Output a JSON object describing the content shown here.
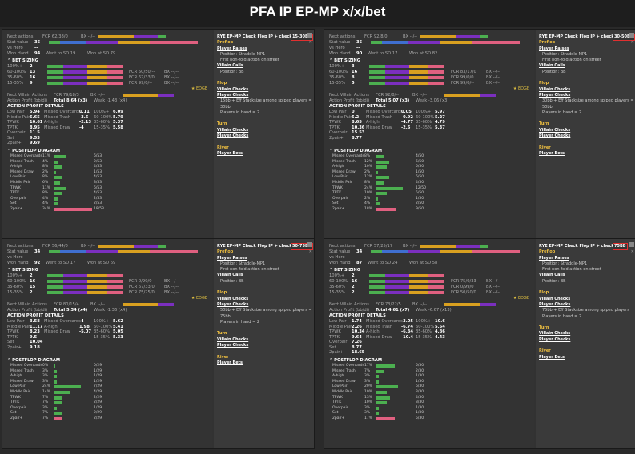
{
  "title": "PFA IP EP-MP x/x/bet",
  "panels": [
    {
      "header": "RYE EP-MP Check Flop IP + check + bet",
      "tag": "15-30BB",
      "next_actions": "Next actions",
      "fcr": "FCR 62/38/0",
      "bx": "BX --/--",
      "stat_value": "Stat value",
      "stat_num": "35",
      "vs_hero": "vs Hero",
      "vs_num": "--",
      "won_hand": "Won Hand",
      "won_num": "94",
      "went_sd": "Went to SD 19",
      "won_sd": "Won at SD 79",
      "bet_sizing": "BET SIZING",
      "sizing": [
        {
          "range": "100%+",
          "n": "2",
          "fcr": "",
          "bx": ""
        },
        {
          "range": "60-100%",
          "n": "13",
          "fcr": "FCR 50/50/--",
          "bx": "BX --/--"
        },
        {
          "range": "35-60%",
          "n": "16",
          "fcr": "FCR 67/33/0",
          "bx": "BX --/--"
        },
        {
          "range": "15-35%",
          "n": "9",
          "fcr": "FCR 99/0/--",
          "bx": "BX --/--"
        }
      ],
      "edge": "EDGE",
      "villain": "Next Villain Actions",
      "villain_fcr": "FCR 79/18/3",
      "villain_bx": "BX --/--",
      "profit": "Action Profit (bb/di)",
      "profit_total": "Total 8.64 (x3)",
      "profit_weak": "Weak -1.43 (x4)",
      "apd": "ACTION PROFIT DETAILS",
      "details": [
        [
          "Low Pair",
          "5.94",
          "Missed Overcards",
          "0.11",
          "100%+",
          "6.09"
        ],
        [
          "Middle Pair",
          "6.65",
          "Missed Trash",
          "-3.6",
          "60-100%",
          "5.79"
        ],
        [
          "TPWK",
          "10.61",
          "A-high",
          "-2.13",
          "35-60%",
          "5.37"
        ],
        [
          "TPTK",
          "8.95",
          "Missed Draw",
          "-4",
          "15-35%",
          "5.58"
        ],
        [
          "Overpair",
          "11.5",
          "",
          "",
          "",
          ""
        ],
        [
          "Set",
          "9.53",
          "",
          "",
          "",
          ""
        ],
        [
          "2pair+",
          "9.69",
          "",
          "",
          "",
          ""
        ]
      ],
      "pfd": "POSTFLOP DIAGRAM",
      "diagram": [
        [
          "Missed Overcards",
          "11%",
          "6/53"
        ],
        [
          "Missed Trash",
          "4%",
          "2/53"
        ],
        [
          "A-high",
          "8%",
          "4/53"
        ],
        [
          "Missed Draw",
          "2%",
          "1/53"
        ],
        [
          "Low Pair",
          "8%",
          "4/53"
        ],
        [
          "Middle Pair",
          "6%",
          "3/53"
        ],
        [
          "TPWK",
          "11%",
          "6/53"
        ],
        [
          "TPTK",
          "8%",
          "4/53"
        ],
        [
          "Overpair",
          "4%",
          "2/53"
        ],
        [
          "Set",
          "4%",
          "2/53"
        ],
        [
          "2pair+",
          "34%",
          "18/53"
        ]
      ],
      "right": {
        "preflop": "Preflop",
        "player_raises": "Player Raises",
        "position": "Position: Straddle-MP1",
        "first": "First non-fold action on street",
        "villain_calls": "Villain Calls",
        "vpos": "Position: BB",
        "flop": "Flop",
        "villain_checks": "Villain Checks",
        "player_checks": "Player Checks",
        "note": "15bb + Eff Stacksize among spiped players = 30bb",
        "players": "Players in hand = 2",
        "turn": "Turn",
        "t1": "Villain Checks",
        "t2": "Player Checks",
        "river": "River",
        "r1": "Player Bets"
      }
    },
    {
      "header": "RYE EP-MP Check Flop IP + check + bet",
      "tag": "30-50BB",
      "next_actions": "Next actions",
      "fcr": "FCR 92/8/0",
      "bx": "BX --/--",
      "stat_value": "Stat value",
      "stat_num": "35",
      "vs_hero": "vs Hero",
      "vs_num": "--",
      "won_hand": "Won Hand",
      "won_num": "90",
      "went_sd": "Went to SD 17",
      "won_sd": "Won at SD 82",
      "bet_sizing": "BET SIZING",
      "sizing": [
        {
          "range": "100%+",
          "n": "3",
          "fcr": "",
          "bx": ""
        },
        {
          "range": "60-100%",
          "n": "16",
          "fcr": "FCR 83/17/0",
          "bx": "BX --/--"
        },
        {
          "range": "35-60%",
          "n": "8",
          "fcr": "FCR 99/0/0",
          "bx": "BX --/--"
        },
        {
          "range": "15-35%",
          "n": "5",
          "fcr": "FCR 99/0/--",
          "bx": "BX --/--"
        }
      ],
      "edge": "EDGE",
      "villain": "Next Villain Actions",
      "villain_fcr": "FCR 92/8/--",
      "villain_bx": "BX --/--",
      "profit": "Action Profit (bb/di)",
      "profit_total": "Total 5.07 (x3)",
      "profit_weak": "Weak -3.06 (x3)",
      "apd": "ACTION PROFIT DETAILS",
      "details": [
        [
          "Low Pair",
          "0",
          "Missed Overcards",
          "0.05",
          "100%+",
          "5.97"
        ],
        [
          "Middle Pair",
          "5.2",
          "Missed Trash",
          "-0.92",
          "60-100%",
          "5.27"
        ],
        [
          "TPWK",
          "8.65",
          "A-high",
          "-4.77",
          "35-60%",
          "4.79"
        ],
        [
          "TPTK",
          "10.36",
          "Missed Draw",
          "-2.6",
          "15-35%",
          "5.37"
        ],
        [
          "Overpair",
          "15.53",
          "",
          "",
          "",
          ""
        ],
        [
          "2pair+",
          "8.77",
          "",
          "",
          "",
          ""
        ],
        [
          "",
          "",
          "",
          "",
          "",
          ""
        ]
      ],
      "pfd": "POSTFLOP DIAGRAM",
      "diagram": [
        [
          "Missed Overcards",
          "8%",
          "4/50"
        ],
        [
          "Missed Trash",
          "12%",
          "6/50"
        ],
        [
          "A-high",
          "10%",
          "5/50"
        ],
        [
          "Missed Draw",
          "2%",
          "1/50"
        ],
        [
          "Low Pair",
          "12%",
          "6/50"
        ],
        [
          "Middle Pair",
          "8%",
          "4/50"
        ],
        [
          "TPWK",
          "24%",
          "12/50"
        ],
        [
          "TPTK",
          "10%",
          "5/50"
        ],
        [
          "Overpair",
          "2%",
          "1/50"
        ],
        [
          "Set",
          "4%",
          "2/50"
        ],
        [
          "2pair+",
          "18%",
          "9/50"
        ]
      ],
      "right": {
        "preflop": "Preflop",
        "player_raises": "Player Raises",
        "position": "Position: Straddle-MP1",
        "first": "First non-fold action on street",
        "villain_calls": "Villain Calls",
        "vpos": "Position: BB",
        "flop": "Flop",
        "villain_checks": "Villain Checks",
        "player_checks": "Player Checks",
        "note": "30bb + Eff Stacksize among spiped players = 50bb",
        "players": "Players in hand = 2",
        "turn": "Turn",
        "t1": "Villain Checks",
        "t2": "Player Checks",
        "river": "River",
        "r1": "Player Bets"
      }
    },
    {
      "header": "RYE EP-MP Check Flop IP + check + bet",
      "tag": "50-75BB",
      "next_actions": "Next actions",
      "fcr": "FCR 56/44/0",
      "bx": "BX --/--",
      "stat_value": "Stat value",
      "stat_num": "34",
      "vs_hero": "vs Hero",
      "vs_num": "--",
      "won_hand": "Won Hand",
      "won_num": "92",
      "went_sd": "Went to SD 17",
      "won_sd": "Won at SD 69",
      "bet_sizing": "BET SIZING",
      "sizing": [
        {
          "range": "100%+",
          "n": "2",
          "fcr": "",
          "bx": ""
        },
        {
          "range": "60-100%",
          "n": "16",
          "fcr": "FCR 0/99/0",
          "bx": "BX --/--"
        },
        {
          "range": "35-60%",
          "n": "15",
          "fcr": "FCR 67/33/0",
          "bx": "BX --/--"
        },
        {
          "range": "15-35%",
          "n": "2",
          "fcr": "FCR 75/25/0",
          "bx": "BX --/--"
        }
      ],
      "edge": "EDGE",
      "villain": "Next Villain Actions",
      "villain_fcr": "FCR 80/15/4",
      "villain_bx": "BX --/--",
      "profit": "Action Profit (bb/di)",
      "profit_total": "Total 5.34 (x4)",
      "profit_weak": "Weak -1.36 (x4)",
      "apd": "ACTION PROFIT DETAILS",
      "details": [
        [
          "Low Pair",
          "3.58",
          "Missed Overcards",
          "-4",
          "100%+",
          "5.62"
        ],
        [
          "Middle Pair",
          "11.17",
          "A-high",
          "1.98",
          "60-100%",
          "5.41"
        ],
        [
          "TPWK",
          "8.23",
          "Missed Draw",
          "-5.07",
          "35-60%",
          "5.05"
        ],
        [
          "TPTK",
          "9.5",
          "",
          "",
          "15-35%",
          "5.33"
        ],
        [
          "Set",
          "10.04",
          "",
          "",
          "",
          ""
        ],
        [
          "2pair+",
          "9.18",
          "",
          "",
          "",
          ""
        ],
        [
          "",
          "",
          "",
          "",
          "",
          ""
        ]
      ],
      "pfd": "POSTFLOP DIAGRAM",
      "diagram": [
        [
          "Missed Overcards",
          "0%",
          "0/29"
        ],
        [
          "Missed Trash",
          "3%",
          "1/29"
        ],
        [
          "A-high",
          "3%",
          "1/29"
        ],
        [
          "Missed Draw",
          "3%",
          "1/29"
        ],
        [
          "Low Pair",
          "24%",
          "7/29"
        ],
        [
          "Middle Pair",
          "14%",
          "4/29"
        ],
        [
          "TPWK",
          "7%",
          "2/29"
        ],
        [
          "TPTK",
          "7%",
          "2/29"
        ],
        [
          "Overpair",
          "3%",
          "1/29"
        ],
        [
          "Set",
          "7%",
          "2/29"
        ],
        [
          "2pair+",
          "7%",
          "2/29"
        ]
      ],
      "right": {
        "preflop": "Preflop",
        "player_raises": "Player Raises",
        "position": "Position: Straddle-MP1",
        "first": "First non-fold action on street",
        "villain_calls": "Villain Calls",
        "vpos": "Position: BB",
        "flop": "Flop",
        "villain_checks": "Villain Checks",
        "player_checks": "Player Checks",
        "note": "50bb + Eff Stacksize among spiped players = 75bb",
        "players": "Players in hand = 2",
        "turn": "Turn",
        "t1": "Villain Checks",
        "t2": "Player Checks",
        "river": "River",
        "r1": "Player Bets"
      }
    },
    {
      "header": "RYE EP-MP Check Flop IP + check + bet",
      "tag": "75BB",
      "next_actions": "Next actions",
      "fcr": "FCR 57/25/17",
      "bx": "BX --/--",
      "stat_value": "Stat value",
      "stat_num": "34",
      "vs_hero": "vs Hero",
      "vs_num": "--",
      "won_hand": "Won Hand",
      "won_num": "87",
      "went_sd": "Went to SD 24",
      "won_sd": "Won at SD 58",
      "bet_sizing": "BET SIZING",
      "sizing": [
        {
          "range": "100%+",
          "n": "2",
          "fcr": "",
          "bx": ""
        },
        {
          "range": "60-100%",
          "n": "16",
          "fcr": "FCR 75/0/33",
          "bx": "BX --/--"
        },
        {
          "range": "35-60%",
          "n": "2",
          "fcr": "FCR 0/99/0",
          "bx": "BX --/--"
        },
        {
          "range": "15-35%",
          "n": "2",
          "fcr": "FCR 50/50/0",
          "bx": "BX --/--"
        }
      ],
      "edge": "EDGE",
      "villain": "Next Villain Actions",
      "villain_fcr": "FCR 73/22/5",
      "villain_bx": "BX --/--",
      "profit": "Action Profit (bb/di)",
      "profit_total": "Total 4.61 (x7)",
      "profit_weak": "Weak -6.67 (x13)",
      "apd": "ACTION PROFIT DETAILS",
      "details": [
        [
          "Low Pair",
          "1.74",
          "Missed Overcards",
          "-3.05",
          "100%+",
          "10.6"
        ],
        [
          "Middle Pair",
          "2.26",
          "Missed Trash",
          "-6.74",
          "60-100%",
          "5.54"
        ],
        [
          "TPWK",
          "10.34",
          "A-high",
          "-6.34",
          "35-60%",
          "4.86"
        ],
        [
          "TPTK",
          "9.64",
          "Missed Draw",
          "-10.4",
          "15-35%",
          "4.43"
        ],
        [
          "Overpair",
          "7.26",
          "",
          "",
          "",
          ""
        ],
        [
          "Set",
          "8.77",
          "",
          "",
          "",
          ""
        ],
        [
          "2pair+",
          "18.65",
          "",
          "",
          "",
          ""
        ]
      ],
      "pfd": "POSTFLOP DIAGRAM",
      "diagram": [
        [
          "Missed Overcards",
          "17%",
          "5/30"
        ],
        [
          "Missed Trash",
          "7%",
          "2/30"
        ],
        [
          "A-high",
          "3%",
          "1/30"
        ],
        [
          "Missed Draw",
          "3%",
          "1/30"
        ],
        [
          "Low Pair",
          "20%",
          "6/30"
        ],
        [
          "Middle Pair",
          "10%",
          "3/30"
        ],
        [
          "TPWK",
          "13%",
          "4/30"
        ],
        [
          "TPTK",
          "10%",
          "3/30"
        ],
        [
          "Overpair",
          "3%",
          "1/30"
        ],
        [
          "Set",
          "3%",
          "1/30"
        ],
        [
          "2pair+",
          "17%",
          "5/30"
        ]
      ],
      "right": {
        "preflop": "Preflop",
        "player_raises": "Player Raises",
        "position": "Position: Straddle-MP1",
        "first": "First non-fold action on street",
        "villain_calls": "Villain Calls",
        "vpos": "Position: BB",
        "flop": "Flop",
        "villain_checks": "Villain Checks",
        "player_checks": "Player Checks",
        "note": "75bb + Eff Stacksize among spiped players",
        "players": "Players in hand = 2",
        "turn": "Turn",
        "t1": "Villain Checks",
        "t2": "Player Checks",
        "river": "River",
        "r1": "Player Bets"
      }
    }
  ],
  "colors": {
    "fold": "#d9a020",
    "call": "#7b2fbf",
    "raise": "#e06080",
    "green": "#4caf50",
    "blue": "#3f6fd0"
  }
}
